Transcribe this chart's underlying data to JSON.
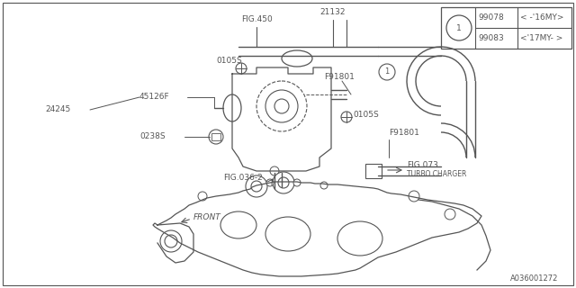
{
  "bg_color": "#ffffff",
  "line_color": "#555555",
  "part_number_bottom": "A036001272",
  "legend": {
    "circle_label": "1",
    "rows": [
      {
        "part": "99078",
        "desc": "< -'16MY>"
      },
      {
        "part": "99083",
        "desc": "<'17MY- >"
      }
    ]
  },
  "fig_size": [
    6.4,
    3.2
  ],
  "dpi": 100
}
